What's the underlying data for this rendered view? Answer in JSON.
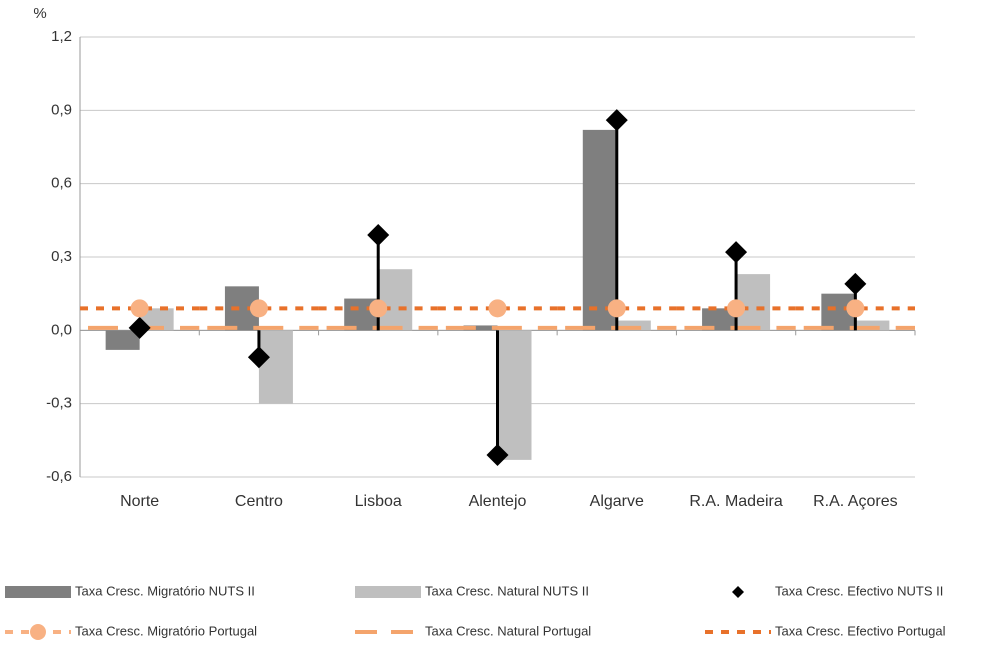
{
  "chart_data": {
    "type": "bar",
    "y_label": "%",
    "categories": [
      "Norte",
      "Centro",
      "Lisboa",
      "Alentejo",
      "Algarve",
      "R.A. Madeira",
      "R.A. Açores"
    ],
    "ylim": [
      -0.6,
      1.2
    ],
    "yticks": [
      {
        "value": -0.6,
        "label": "-0,6"
      },
      {
        "value": -0.3,
        "label": "-0,3"
      },
      {
        "value": 0,
        "label": "0,0"
      },
      {
        "value": 0.3,
        "label": "0,3"
      },
      {
        "value": 0.6,
        "label": "0,6"
      },
      {
        "value": 0.9,
        "label": "0,9"
      },
      {
        "value": 1.2,
        "label": "1,2"
      }
    ],
    "grid": true,
    "series": [
      {
        "name": "Taxa Cresc. Migratório NUTS II",
        "color": "#7f7f7f",
        "kind": "bar",
        "values": [
          -0.08,
          0.18,
          0.13,
          0.02,
          0.82,
          0.09,
          0.15
        ]
      },
      {
        "name": "Taxa Cresc. Natural NUTS II",
        "color": "#bfbfbf",
        "kind": "bar",
        "values": [
          0.09,
          -0.3,
          0.25,
          -0.53,
          0.04,
          0.23,
          0.04
        ]
      },
      {
        "name": "Taxa Cresc. Efectivo NUTS II",
        "color": "#000000",
        "kind": "diamond",
        "values": [
          0.01,
          -0.11,
          0.39,
          -0.51,
          0.86,
          0.32,
          0.19
        ]
      },
      {
        "name": "Taxa Cresc. Migratório Portugal",
        "color": "#f8b183",
        "kind": "circle",
        "values": [
          0.09,
          0.09,
          0.09,
          0.09,
          0.09,
          0.09,
          0.09
        ]
      },
      {
        "name": "Taxa Cresc. Natural Portugal",
        "color": "#f4a46c",
        "kind": "dash",
        "values": [
          0.01,
          0.01,
          0.01,
          0.01,
          0.01,
          0.01,
          0.01
        ]
      },
      {
        "name": "Taxa Cresc. Efectivo Portugal",
        "color": "#e8712a",
        "kind": "dot",
        "values": [
          0.09,
          0.09,
          0.09,
          0.09,
          0.09,
          0.09,
          0.09
        ]
      }
    ]
  }
}
